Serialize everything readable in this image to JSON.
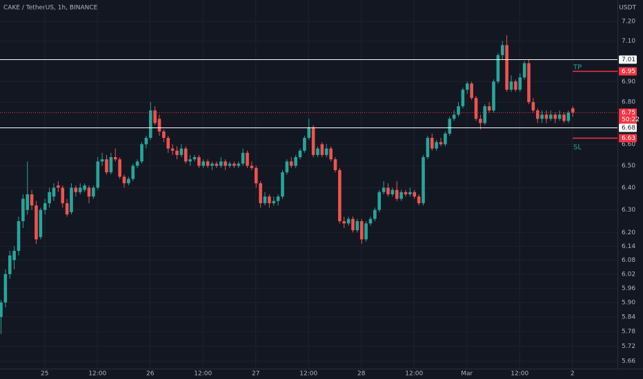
{
  "chart_data": {
    "type": "candlestick",
    "title": "CAKE / TetherUS, 1h, BINANCE",
    "currency": "USDT",
    "log_scale": true,
    "grid": true,
    "up_color": "#26a69a",
    "down_color": "#ef5350",
    "ylim": [
      5.63,
      7.31
    ],
    "yticks": [
      {
        "value": 7.2,
        "label": "7.20"
      },
      {
        "value": 7.1,
        "label": "7.10"
      },
      {
        "value": 6.9,
        "label": "6.90"
      },
      {
        "value": 6.8,
        "label": "6.80"
      },
      {
        "value": 6.6,
        "label": "6.60"
      },
      {
        "value": 6.5,
        "label": "6.50"
      },
      {
        "value": 6.4,
        "label": "6.40"
      },
      {
        "value": 6.3,
        "label": "6.30"
      },
      {
        "value": 6.2,
        "label": "6.20"
      },
      6.14,
      6.08,
      6.02,
      5.96,
      {
        "value": 5.9,
        "label": "5.90"
      },
      5.84,
      5.78,
      5.72,
      5.66
    ],
    "xlim": [
      0,
      140
    ],
    "xticks": [
      {
        "value": 10,
        "label": "25"
      },
      {
        "value": 22,
        "label": "12:00"
      },
      {
        "value": 34,
        "label": "26"
      },
      {
        "value": 46,
        "label": "12:00"
      },
      {
        "value": 58,
        "label": "27"
      },
      {
        "value": 70,
        "label": "12:00"
      },
      {
        "value": 82,
        "label": "28"
      },
      {
        "value": 94,
        "label": "12:00"
      },
      {
        "value": 106,
        "label": "Mar"
      },
      {
        "value": 118,
        "label": "12:00"
      },
      {
        "value": 130,
        "label": "2"
      }
    ],
    "candles": [
      [
        5.84,
        5.91,
        5.77,
        5.9
      ],
      [
        5.9,
        6.04,
        5.88,
        6.02
      ],
      [
        6.02,
        6.12,
        6.0,
        6.1
      ],
      [
        6.08,
        6.14,
        6.04,
        6.12
      ],
      [
        6.12,
        6.27,
        6.1,
        6.25
      ],
      [
        6.25,
        6.37,
        6.22,
        6.35
      ],
      [
        6.3,
        6.52,
        6.28,
        6.37
      ],
      [
        6.37,
        6.39,
        6.3,
        6.32
      ],
      [
        6.32,
        6.34,
        6.15,
        6.17
      ],
      [
        6.18,
        6.31,
        6.17,
        6.3
      ],
      [
        6.3,
        6.35,
        6.28,
        6.33
      ],
      [
        6.33,
        6.4,
        6.31,
        6.38
      ],
      [
        6.36,
        6.42,
        6.34,
        6.4
      ],
      [
        6.41,
        6.43,
        6.38,
        6.4
      ],
      [
        6.4,
        6.41,
        6.31,
        6.33
      ],
      [
        6.33,
        6.35,
        6.27,
        6.28
      ],
      [
        6.29,
        6.42,
        6.28,
        6.4
      ],
      [
        6.4,
        6.41,
        6.36,
        6.38
      ],
      [
        6.38,
        6.42,
        6.37,
        6.4
      ],
      [
        6.39,
        6.42,
        6.38,
        6.41
      ],
      [
        6.4,
        6.41,
        6.33,
        6.36
      ],
      [
        6.36,
        6.41,
        6.35,
        6.4
      ],
      [
        6.4,
        6.54,
        6.39,
        6.52
      ],
      [
        6.52,
        6.56,
        6.5,
        6.53
      ],
      [
        6.53,
        6.55,
        6.46,
        6.47
      ],
      [
        6.47,
        6.56,
        6.46,
        6.54
      ],
      [
        6.54,
        6.58,
        6.52,
        6.53
      ],
      [
        6.53,
        6.54,
        6.44,
        6.45
      ],
      [
        6.45,
        6.46,
        6.4,
        6.42
      ],
      [
        6.42,
        6.45,
        6.41,
        6.44
      ],
      [
        6.44,
        6.51,
        6.43,
        6.5
      ],
      [
        6.5,
        6.53,
        6.49,
        6.52
      ],
      [
        6.52,
        6.61,
        6.51,
        6.6
      ],
      [
        6.6,
        6.64,
        6.58,
        6.63
      ],
      [
        6.63,
        6.8,
        6.62,
        6.76
      ],
      [
        6.76,
        6.78,
        6.69,
        6.7
      ],
      [
        6.72,
        6.74,
        6.64,
        6.66
      ],
      [
        6.66,
        6.67,
        6.61,
        6.63
      ],
      [
        6.63,
        6.64,
        6.56,
        6.58
      ],
      [
        6.58,
        6.6,
        6.55,
        6.57
      ],
      [
        6.57,
        6.59,
        6.53,
        6.55
      ],
      [
        6.55,
        6.6,
        6.54,
        6.58
      ],
      [
        6.58,
        6.59,
        6.51,
        6.52
      ],
      [
        6.52,
        6.55,
        6.5,
        6.53
      ],
      [
        6.53,
        6.55,
        6.52,
        6.54
      ],
      [
        6.54,
        6.55,
        6.49,
        6.5
      ],
      [
        6.5,
        6.53,
        6.49,
        6.52
      ],
      [
        6.52,
        6.53,
        6.49,
        6.5
      ],
      [
        6.5,
        6.52,
        6.48,
        6.51
      ],
      [
        6.51,
        6.52,
        6.49,
        6.5
      ],
      [
        6.5,
        6.54,
        6.49,
        6.52
      ],
      [
        6.52,
        6.53,
        6.48,
        6.5
      ],
      [
        6.5,
        6.52,
        6.49,
        6.51
      ],
      [
        6.51,
        6.52,
        6.49,
        6.5
      ],
      [
        6.5,
        6.52,
        6.49,
        6.51
      ],
      [
        6.51,
        6.58,
        6.5,
        6.56
      ],
      [
        6.56,
        6.57,
        6.49,
        6.5
      ],
      [
        6.5,
        6.52,
        6.48,
        6.49
      ],
      [
        6.49,
        6.5,
        6.4,
        6.42
      ],
      [
        6.42,
        6.43,
        6.31,
        6.33
      ],
      [
        6.33,
        6.38,
        6.32,
        6.36
      ],
      [
        6.36,
        6.37,
        6.31,
        6.33
      ],
      [
        6.33,
        6.36,
        6.32,
        6.34
      ],
      [
        6.34,
        6.37,
        6.32,
        6.36
      ],
      [
        6.36,
        6.48,
        6.35,
        6.47
      ],
      [
        6.47,
        6.53,
        6.46,
        6.52
      ],
      [
        6.52,
        6.54,
        6.49,
        6.5
      ],
      [
        6.5,
        6.55,
        6.49,
        6.54
      ],
      [
        6.54,
        6.58,
        6.53,
        6.57
      ],
      [
        6.57,
        6.64,
        6.56,
        6.63
      ],
      [
        6.63,
        6.72,
        6.62,
        6.68
      ],
      [
        6.68,
        6.69,
        6.54,
        6.55
      ],
      [
        6.55,
        6.59,
        6.54,
        6.58
      ],
      [
        6.6,
        6.61,
        6.54,
        6.55
      ],
      [
        6.55,
        6.6,
        6.54,
        6.58
      ],
      [
        6.58,
        6.59,
        6.52,
        6.53
      ],
      [
        6.53,
        6.54,
        6.47,
        6.48
      ],
      [
        6.48,
        6.49,
        6.24,
        6.25
      ],
      [
        6.25,
        6.27,
        6.22,
        6.24
      ],
      [
        6.24,
        6.27,
        6.23,
        6.26
      ],
      [
        6.26,
        6.27,
        6.2,
        6.21
      ],
      [
        6.21,
        6.26,
        6.2,
        6.25
      ],
      [
        6.25,
        6.26,
        6.15,
        6.17
      ],
      [
        6.17,
        6.25,
        6.16,
        6.24
      ],
      [
        6.24,
        6.27,
        6.23,
        6.26
      ],
      [
        6.26,
        6.31,
        6.25,
        6.3
      ],
      [
        6.3,
        6.39,
        6.29,
        6.38
      ],
      [
        6.38,
        6.43,
        6.37,
        6.4
      ],
      [
        6.4,
        6.42,
        6.36,
        6.37
      ],
      [
        6.37,
        6.4,
        6.36,
        6.39
      ],
      [
        6.39,
        6.43,
        6.34,
        6.35
      ],
      [
        6.35,
        6.39,
        6.34,
        6.38
      ],
      [
        6.38,
        6.39,
        6.36,
        6.37
      ],
      [
        6.37,
        6.4,
        6.36,
        6.38
      ],
      [
        6.38,
        6.39,
        6.35,
        6.36
      ],
      [
        6.36,
        6.37,
        6.32,
        6.33
      ],
      [
        6.33,
        6.55,
        6.32,
        6.54
      ],
      [
        6.54,
        6.64,
        6.53,
        6.63
      ],
      [
        6.63,
        6.65,
        6.57,
        6.58
      ],
      [
        6.58,
        6.62,
        6.57,
        6.61
      ],
      [
        6.61,
        6.63,
        6.59,
        6.6
      ],
      [
        6.6,
        6.66,
        6.59,
        6.65
      ],
      [
        6.65,
        6.73,
        6.64,
        6.72
      ],
      [
        6.72,
        6.76,
        6.71,
        6.74
      ],
      [
        6.74,
        6.8,
        6.73,
        6.78
      ],
      [
        6.78,
        6.87,
        6.77,
        6.86
      ],
      [
        6.86,
        6.9,
        6.84,
        6.89
      ],
      [
        6.89,
        6.9,
        6.81,
        6.82
      ],
      [
        6.82,
        6.83,
        6.71,
        6.72
      ],
      [
        6.72,
        6.74,
        6.67,
        6.7
      ],
      [
        6.7,
        6.79,
        6.69,
        6.78
      ],
      [
        6.78,
        6.8,
        6.75,
        6.76
      ],
      [
        6.76,
        6.91,
        6.75,
        6.9
      ],
      [
        6.9,
        7.04,
        6.89,
        7.03
      ],
      [
        7.03,
        7.1,
        7.01,
        7.08
      ],
      [
        7.08,
        7.13,
        6.85,
        6.86
      ],
      [
        6.86,
        6.93,
        6.85,
        6.9
      ],
      [
        6.9,
        6.91,
        6.85,
        6.86
      ],
      [
        6.86,
        6.94,
        6.85,
        6.92
      ],
      [
        6.92,
        7.0,
        6.91,
        6.99
      ],
      [
        6.99,
        7.01,
        6.79,
        6.8
      ],
      [
        6.8,
        6.82,
        6.75,
        6.76
      ],
      [
        6.76,
        6.77,
        6.7,
        6.72
      ],
      [
        6.72,
        6.76,
        6.7,
        6.74
      ],
      [
        6.74,
        6.76,
        6.7,
        6.72
      ],
      [
        6.72,
        6.76,
        6.71,
        6.74
      ],
      [
        6.74,
        6.75,
        6.7,
        6.72
      ],
      [
        6.72,
        6.76,
        6.71,
        6.74
      ],
      [
        6.74,
        6.75,
        6.7,
        6.71
      ],
      [
        6.71,
        6.76,
        6.7,
        6.75
      ],
      [
        6.77,
        6.78,
        6.73,
        6.75
      ]
    ],
    "horizontal_lines": [
      {
        "value": 7.01,
        "color": "#ffffff"
      },
      {
        "value": 6.68,
        "color": "#ffffff"
      }
    ],
    "orders": [
      {
        "name": "TP",
        "value": 6.95,
        "color": "#f23645"
      },
      {
        "name": "SL",
        "value": 6.63,
        "color": "#f23645"
      }
    ],
    "last_price": {
      "value": 6.75,
      "countdown": "50:22",
      "color": "#f23645"
    }
  }
}
